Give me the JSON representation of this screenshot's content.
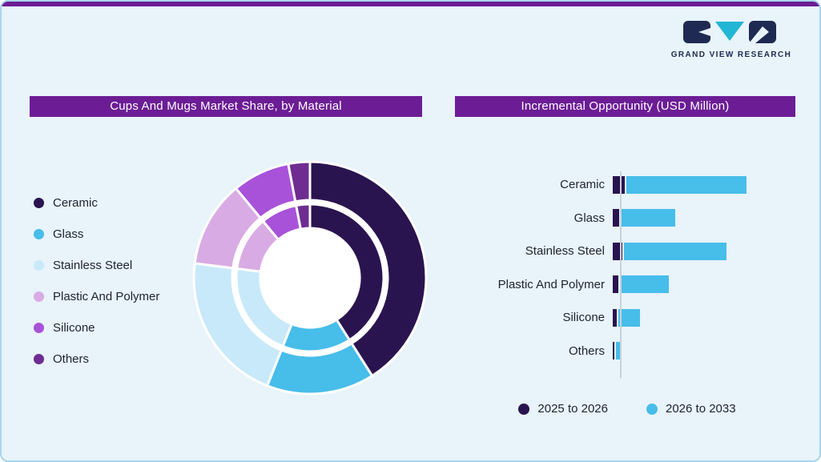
{
  "page": {
    "background": "#E8F3FA",
    "border": "#A7D6EC",
    "accent": "#6C1D95"
  },
  "logo": {
    "wordmark": "GRAND VIEW RESEARCH",
    "navy": "#1E2A52",
    "teal": "#21B6D5"
  },
  "panels": {
    "left_title": "Cups And Mugs Market Share, by Material",
    "right_title": "Incremental Opportunity (USD Million)"
  },
  "chart_data": [
    {
      "type": "pie",
      "variant": "double-ring-donut",
      "title": "Cups And Mugs Market Share, by Material",
      "categories": [
        "Ceramic",
        "Glass",
        "Stainless Steel",
        "Plastic And Polymer",
        "Silicone",
        "Others"
      ],
      "values_pct_outer": [
        41,
        15,
        21,
        12,
        8,
        3
      ],
      "values_pct_inner": [
        41,
        15,
        21,
        12,
        8,
        3
      ],
      "colors": [
        "#2A1450",
        "#47BDEA",
        "#C8E9F9",
        "#D9ABE4",
        "#A852D9",
        "#6F2C91"
      ],
      "legend_position": "left",
      "data_labels_shown": false
    },
    {
      "type": "bar",
      "orientation": "horizontal",
      "stacked": true,
      "title": "Incremental Opportunity (USD Million)",
      "categories": [
        "Ceramic",
        "Glass",
        "Stainless Steel",
        "Plastic And Polymer",
        "Silicone",
        "Others"
      ],
      "series": [
        {
          "name": "2025 to 2026",
          "color": "#2A1450",
          "values": [
            15,
            8,
            12,
            7,
            5,
            2
          ]
        },
        {
          "name": "2026 to 2033",
          "color": "#47BDEA",
          "values": [
            150,
            68,
            128,
            61,
            27,
            7
          ]
        }
      ],
      "axis_tick_labels_shown": false,
      "legend_position": "bottom"
    }
  ]
}
